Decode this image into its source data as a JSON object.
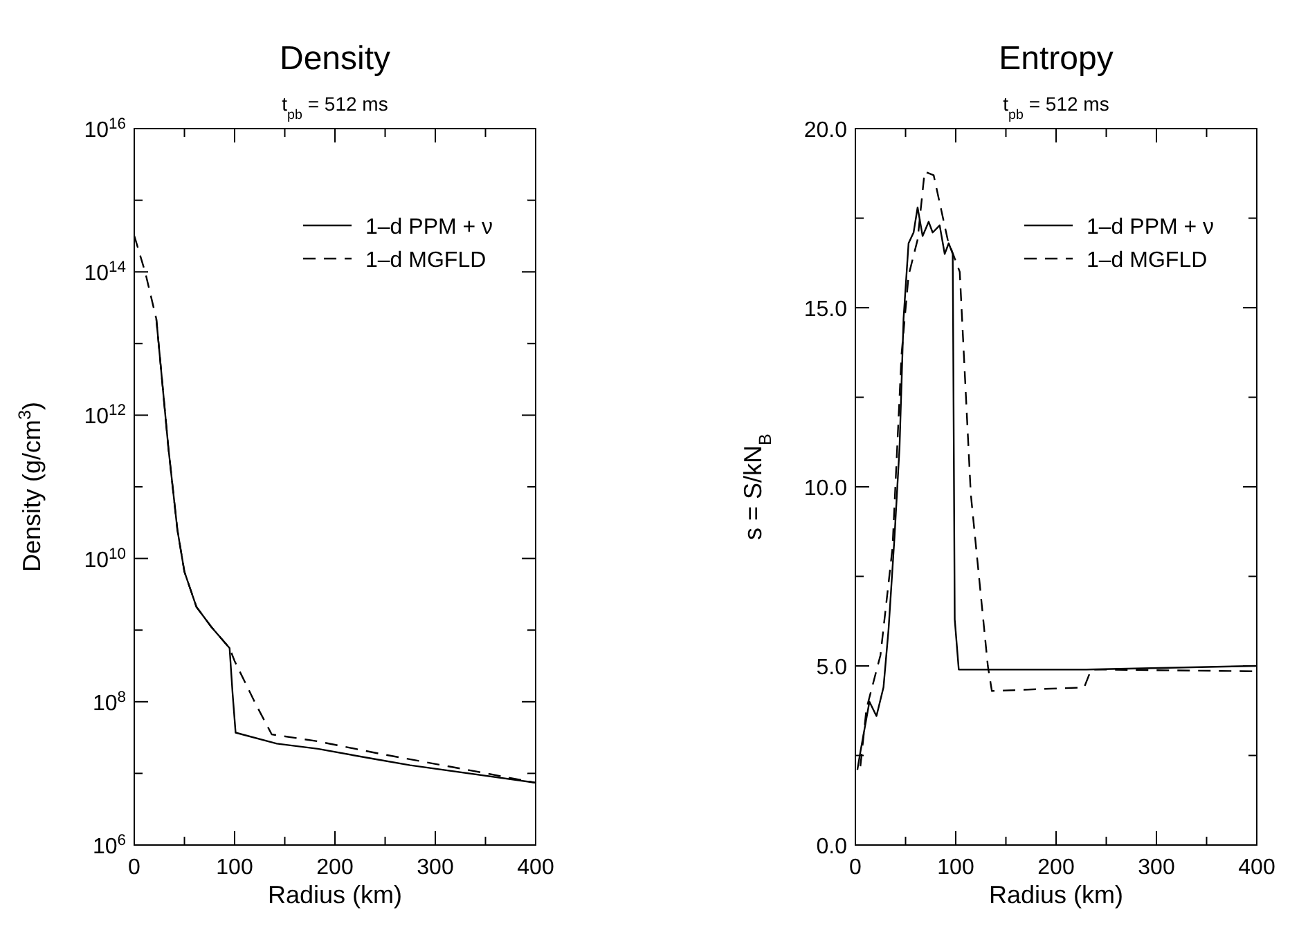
{
  "chart_data": [
    {
      "type": "line",
      "title": "Density",
      "subtitle": "t$_{pb}$ = 512 ms",
      "xlabel": "Radius (km)",
      "ylabel": "Density (g/cm$^{3}$)",
      "log": "y",
      "legend": "top right",
      "xlim": [
        0,
        400
      ],
      "xticks": [
        0,
        {
          "value": 50,
          "label": null
        },
        100,
        {
          "value": 150,
          "label": null
        },
        200,
        {
          "value": 250,
          "label": null
        },
        300,
        {
          "value": 350,
          "label": null
        },
        400
      ],
      "ylim": [
        1000000.0,
        1e+16
      ],
      "yticks": [
        {
          "value": 1000000.0,
          "label": "10$^{6}$"
        },
        {
          "value": 10000000.0,
          "label": null
        },
        {
          "value": 100000000.0,
          "label": "10$^{8}$"
        },
        {
          "value": 1000000000.0,
          "label": null
        },
        {
          "value": 10000000000.0,
          "label": "10$^{10}$"
        },
        {
          "value": 100000000000.0,
          "label": null
        },
        {
          "value": 1000000000000.0,
          "label": "10$^{12}$"
        },
        {
          "value": 10000000000000.0,
          "label": null
        },
        {
          "value": 100000000000000.0,
          "label": "10$^{14}$"
        },
        {
          "value": 1000000000000000.0,
          "label": null
        },
        {
          "value": 1e+16,
          "label": "10$^{16}$"
        }
      ],
      "series": [
        {
          "name": "1–d PPM + ν",
          "color": "#000000",
          "line_style": "solid",
          "x": [
            22,
            34,
            43,
            50,
            62,
            77,
            95,
            98,
            101,
            142,
            183,
            238,
            275,
            400
          ],
          "values": [
            22000000000000.0,
            350000000000.0,
            25000000000.0,
            6500000000.0,
            2100000000.0,
            1100000000.0,
            560000000.0,
            130000000.0,
            37000000.0,
            26000000.0,
            22000000.0,
            16000000.0,
            13000000.0,
            7400000.0
          ]
        },
        {
          "name": "1–d MGFLD",
          "color": "#000000",
          "line_style": "dashed",
          "x": [
            0,
            11,
            22,
            34,
            43,
            50,
            62,
            77,
            95,
            100,
            121,
            137,
            183,
            243,
            335,
            400
          ],
          "values": [
            320000000000000.0,
            98000000000000.0,
            22000000000000.0,
            350000000000.0,
            25000000000.0,
            6500000000.0,
            2100000000.0,
            1100000000.0,
            560000000.0,
            370000000.0,
            93000000.0,
            35000000.0,
            28000000.0,
            19000000.0,
            11000000.0,
            7400000.0
          ]
        }
      ]
    },
    {
      "type": "line",
      "title": "Entropy",
      "subtitle": "t$_{pb}$ = 512 ms",
      "xlabel": "Radius (km)",
      "ylabel": "s = S/kN$_{B}$",
      "legend": "top right",
      "xlim": [
        0,
        400
      ],
      "xticks": [
        0,
        {
          "value": 50,
          "label": null
        },
        100,
        {
          "value": 150,
          "label": null
        },
        200,
        {
          "value": 250,
          "label": null
        },
        300,
        {
          "value": 350,
          "label": null
        },
        400
      ],
      "ylim": [
        0,
        20
      ],
      "yticks": [
        {
          "value": 0,
          "label": "0.0"
        },
        {
          "value": 2.5,
          "label": null
        },
        {
          "value": 5,
          "label": "5.0"
        },
        {
          "value": 7.5,
          "label": null
        },
        {
          "value": 10,
          "label": "10.0"
        },
        {
          "value": 12.5,
          "label": null
        },
        {
          "value": 15,
          "label": "15.0"
        },
        {
          "value": 17.5,
          "label": null
        },
        {
          "value": 20,
          "label": "20.0"
        }
      ],
      "series": [
        {
          "name": "1–d PPM + ν",
          "color": "#000000",
          "line_style": "solid",
          "x": [
            2,
            5,
            14,
            21,
            28,
            33,
            39,
            44,
            48,
            53,
            58,
            62,
            67,
            73,
            77,
            84,
            89,
            93,
            97,
            99,
            103,
            230,
            400
          ],
          "values": [
            2.1,
            2.6,
            4.0,
            3.6,
            4.4,
            6.0,
            8.6,
            11.1,
            14.7,
            16.8,
            17.1,
            17.8,
            17.0,
            17.4,
            17.1,
            17.3,
            16.5,
            16.8,
            16.5,
            6.3,
            4.9,
            4.9,
            5.0
          ]
        },
        {
          "name": "1–d MGFLD",
          "color": "#000000",
          "line_style": "dashed",
          "x": [
            5,
            11,
            25,
            37,
            46,
            53,
            62,
            69,
            78,
            92,
            104,
            115,
            132,
            136,
            228,
            235,
            400
          ],
          "values": [
            2.2,
            3.8,
            5.3,
            8.3,
            13.7,
            15.9,
            16.9,
            18.8,
            18.7,
            16.9,
            16.0,
            9.8,
            5.0,
            4.3,
            4.4,
            4.9,
            4.85
          ]
        }
      ]
    }
  ]
}
